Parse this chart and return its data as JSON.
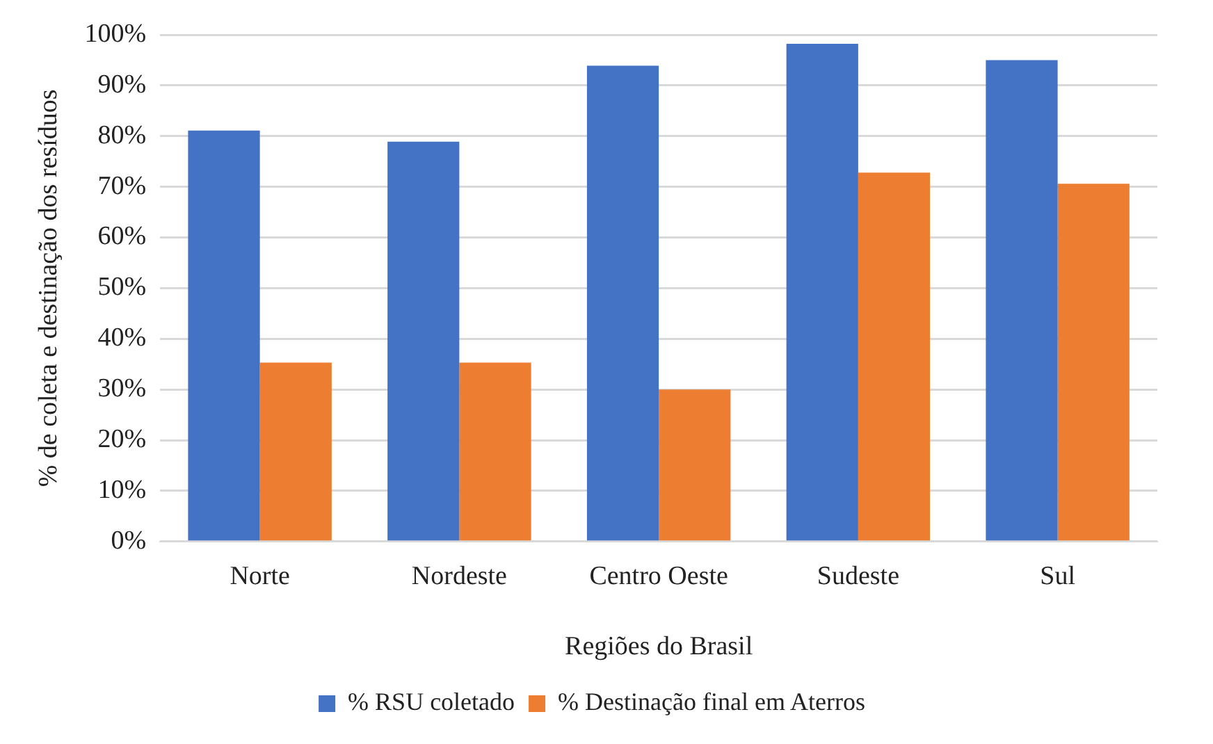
{
  "chart_data": {
    "type": "bar",
    "xlabel": "Regiões do Brasil",
    "ylabel": "% de coleta e destinação dos resíduos",
    "categories": [
      "Norte",
      "Nordeste",
      "Centro Oeste",
      "Sudeste",
      "Sul"
    ],
    "series": [
      {
        "name": "% RSU coletado",
        "color": "#4472c4",
        "values": [
          81.1,
          78.9,
          93.9,
          98.2,
          95.0
        ]
      },
      {
        "name": "% Destinação final em Aterros",
        "color": "#ed7d31",
        "values": [
          35.3,
          35.3,
          30.0,
          72.8,
          70.6
        ]
      }
    ],
    "ylim": [
      0,
      100
    ],
    "yticks": [
      {
        "value": 0,
        "label": "0%"
      },
      {
        "value": 10,
        "label": "10%"
      },
      {
        "value": 20,
        "label": "20%"
      },
      {
        "value": 30,
        "label": "30%"
      },
      {
        "value": 40,
        "label": "40%"
      },
      {
        "value": 50,
        "label": "50%"
      },
      {
        "value": 60,
        "label": "60%"
      },
      {
        "value": 70,
        "label": "70%"
      },
      {
        "value": 80,
        "label": "80%"
      },
      {
        "value": 90,
        "label": "90%"
      },
      {
        "value": 100,
        "label": "100%"
      }
    ],
    "grid": "y",
    "legend": "bottom"
  }
}
